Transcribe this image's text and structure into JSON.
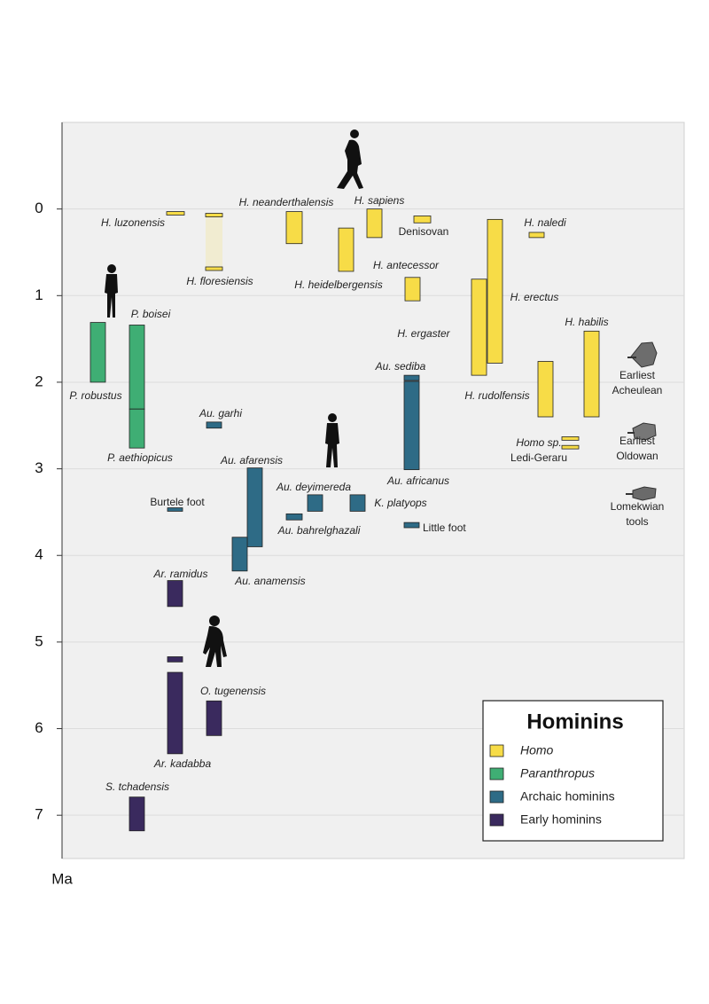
{
  "chart_data": {
    "type": "range",
    "y_label": "Ma",
    "ylim": [
      -1,
      7.5
    ],
    "yticks": [
      0,
      1,
      2,
      3,
      4,
      5,
      6,
      7
    ],
    "grid": true,
    "legend_title": "Hominins",
    "legend_position": "lower right",
    "series": [
      {
        "name": "Homo",
        "color": "#f7dc47",
        "labels": [
          "H. luzonensis",
          "H. floresiensis",
          "H. neanderthalensis",
          "H. sapiens",
          "H. heidelbergensis",
          "Denisovan",
          "H. antecessor",
          "H. erectus",
          "H. ergaster",
          "H. naledi",
          "H. rudolfensis",
          "H. habilis",
          [
            "Homo sp.",
            "Ledi-Geraru"
          ],
          null
        ],
        "starts": [
          0.03,
          0.05,
          0.03,
          0.0,
          0.22,
          0.08,
          0.79,
          0.12,
          0.81,
          0.27,
          1.76,
          1.41,
          2.63,
          2.73
        ],
        "ends": [
          0.07,
          0.71,
          0.4,
          0.33,
          0.72,
          0.16,
          1.06,
          1.78,
          1.92,
          0.33,
          2.4,
          2.4,
          2.67,
          2.77
        ]
      },
      {
        "name": "Paranthropus",
        "color": "#3fae74",
        "labels": [
          "P. robustus",
          "P. boisei",
          "P. aethiopicus"
        ],
        "starts": [
          1.31,
          1.34,
          2.31
        ],
        "ends": [
          2.0,
          2.31,
          2.76
        ]
      },
      {
        "name": "Archaic hominins",
        "color": "#2e6b86",
        "labels": [
          "Au. garhi",
          "Au. sediba",
          "Au. africanus",
          "Au. afarensis",
          "Au. deyimereda",
          "K. platyops",
          "Au. bahrelghazali",
          "Burtele foot",
          "Little foot",
          "Au. anamensis"
        ],
        "starts": [
          2.46,
          1.92,
          1.99,
          2.99,
          3.3,
          3.3,
          3.52,
          3.45,
          3.62,
          3.79
        ],
        "ends": [
          2.53,
          1.98,
          3.01,
          3.9,
          3.49,
          3.49,
          3.59,
          3.49,
          3.68,
          4.18
        ]
      },
      {
        "name": "Early hominins",
        "color": "#3a2a5e",
        "labels": [
          "Ar. ramidus",
          null,
          "Ar. kadabba",
          "O. tugenensis",
          "S. tchadensis"
        ],
        "starts": [
          4.29,
          5.17,
          5.35,
          5.68,
          6.79
        ],
        "ends": [
          4.59,
          5.23,
          6.29,
          6.08,
          7.18
        ]
      }
    ],
    "tools": [
      [
        "Earliest",
        "Acheulean"
      ],
      [
        "Earliest",
        "Oldowan"
      ],
      [
        "Lomekwian",
        "tools"
      ]
    ]
  }
}
